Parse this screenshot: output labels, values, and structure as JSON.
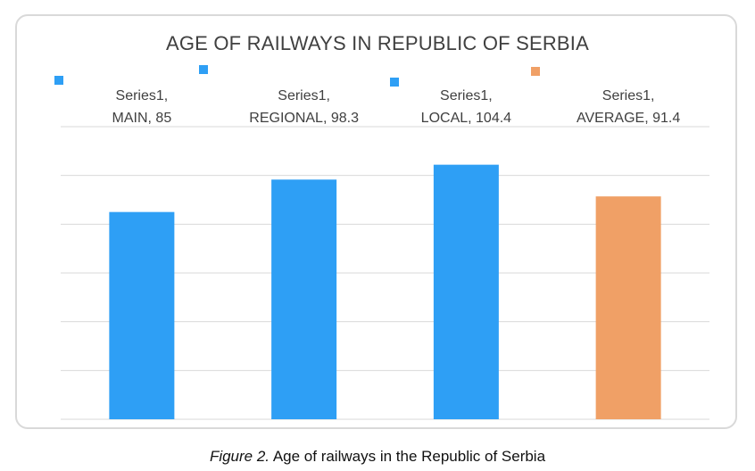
{
  "chart_data": {
    "type": "bar",
    "title": "AGE OF RAILWAYS IN REPUBLIC OF SERBIA",
    "categories": [
      "MAIN",
      "REGIONAL",
      "LOCAL",
      "AVERAGE"
    ],
    "series": [
      {
        "name": "Series1",
        "values": [
          85,
          98.3,
          104.4,
          91.4
        ]
      }
    ],
    "bar_colors": [
      "#2e9ff5",
      "#2e9ff5",
      "#2e9ff5",
      "#f0a066"
    ],
    "data_labels": [
      [
        "Series1,",
        "MAIN, 85"
      ],
      [
        "Series1,",
        "REGIONAL, 98.3"
      ],
      [
        "Series1,",
        "LOCAL, 104.4"
      ],
      [
        "Series1,",
        "AVERAGE, 91.4"
      ]
    ],
    "ylim": [
      0,
      120
    ],
    "grid": true,
    "gridline_color": "#d9d9d9"
  },
  "caption": {
    "prefix": "Figure 2.",
    "text": " Age of railways in the Republic of Serbia"
  }
}
